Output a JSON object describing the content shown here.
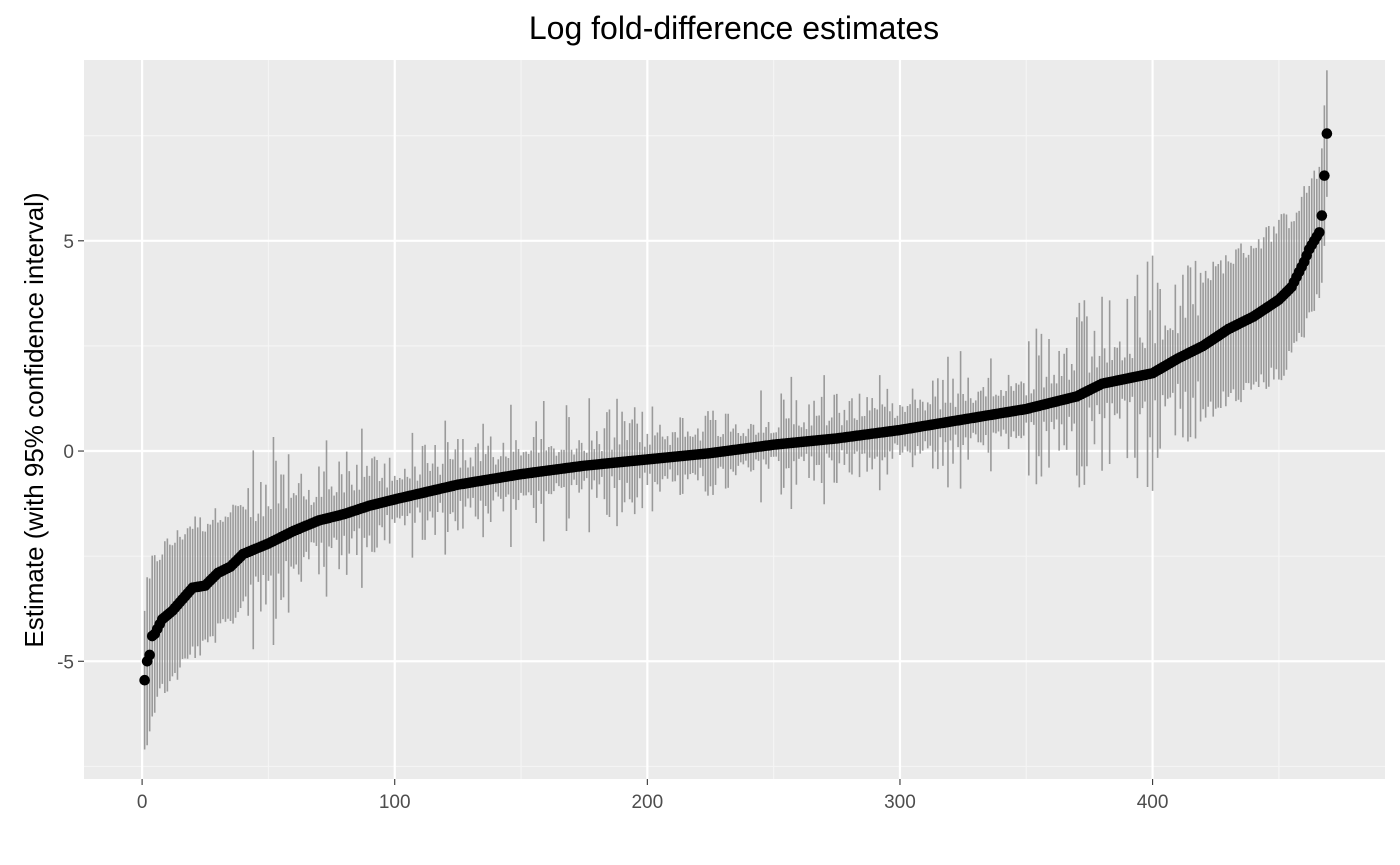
{
  "chart_data": {
    "type": "scatter",
    "title": "Log fold-difference estimates",
    "xlabel": "",
    "ylabel": "Estimate (with 95% confidence interval)",
    "n_points": 469,
    "xlim": [
      -23,
      492
    ],
    "ylim": [
      -7.8,
      9.3
    ],
    "x_ticks": [
      0,
      100,
      200,
      300,
      400
    ],
    "x_tick_labels": [
      "0",
      "100",
      "200",
      "300",
      "400"
    ],
    "y_ticks": [
      -5,
      0,
      5
    ],
    "y_tick_labels": [
      "-5",
      "0",
      "5"
    ],
    "grid": true,
    "colors": {
      "panel_background": "#ebebeb",
      "grid_major": "#ffffff",
      "grid_minor": "#f5f5f5",
      "point": "#000000",
      "error_bar": "#8c8c8c"
    },
    "series": [
      {
        "marker": "point",
        "sorted_estimates_keypoints": {
          "x": [
            1,
            2,
            3,
            4,
            5,
            8,
            12,
            20,
            25,
            30,
            35,
            40,
            50,
            60,
            70,
            80,
            90,
            100,
            125,
            150,
            175,
            200,
            225,
            250,
            275,
            300,
            325,
            350,
            370,
            380,
            400,
            410,
            420,
            430,
            440,
            450,
            455,
            460,
            462,
            465,
            466,
            467,
            468,
            469
          ],
          "y": [
            -5.45,
            -5.0,
            -4.85,
            -4.4,
            -4.35,
            -4.0,
            -3.8,
            -3.25,
            -3.2,
            -2.9,
            -2.75,
            -2.45,
            -2.2,
            -1.9,
            -1.65,
            -1.5,
            -1.3,
            -1.15,
            -0.8,
            -0.55,
            -0.35,
            -0.2,
            -0.05,
            0.15,
            0.3,
            0.5,
            0.75,
            1.0,
            1.3,
            1.6,
            1.85,
            2.2,
            2.5,
            2.9,
            3.2,
            3.6,
            3.9,
            4.5,
            4.8,
            5.1,
            5.2,
            5.6,
            6.55,
            7.55
          ]
        },
        "ci_half_width_keypoints": {
          "x": [
            1,
            10,
            30,
            45,
            90,
            150,
            250,
            350,
            380,
            400,
            420,
            450,
            469
          ],
          "y": [
            1.75,
            1.65,
            1.4,
            1.1,
            0.8,
            0.7,
            0.7,
            0.8,
            1.0,
            1.25,
            1.6,
            1.75,
            1.45
          ]
        }
      }
    ]
  }
}
